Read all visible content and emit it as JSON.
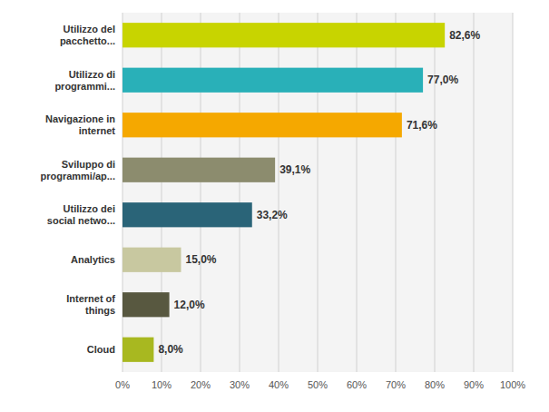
{
  "chart_data": {
    "type": "bar",
    "orientation": "horizontal",
    "categories": [
      "Utilizzo del\npacchetto...",
      "Utilizzo di\nprogrammi...",
      "Navigazione in\ninternet",
      "Sviluppo di\nprogrammi/ap...",
      "Utilizzo dei\nsocial netwo...",
      "Analytics",
      "Internet of\nthings",
      "Cloud"
    ],
    "values": [
      82.6,
      77.0,
      71.6,
      39.1,
      33.2,
      15.0,
      12.0,
      8.0
    ],
    "value_labels": [
      "82,6%",
      "77,0%",
      "71,6%",
      "39,1%",
      "33,2%",
      "15,0%",
      "12,0%",
      "8,0%"
    ],
    "colors": [
      "#c8d400",
      "#29b0b8",
      "#f5a800",
      "#8c8c6e",
      "#2a6478",
      "#c8c8a0",
      "#585840",
      "#a8b820"
    ],
    "xlim": [
      0,
      100
    ],
    "xticks": [
      {
        "value": 0,
        "label": "0%"
      },
      {
        "value": 10,
        "label": "10%"
      },
      {
        "value": 20,
        "label": "20%"
      },
      {
        "value": 30,
        "label": "30%"
      },
      {
        "value": 40,
        "label": "40%"
      },
      {
        "value": 50,
        "label": "50%"
      },
      {
        "value": 60,
        "label": "60%"
      },
      {
        "value": 70,
        "label": "70%"
      },
      {
        "value": 80,
        "label": "80%"
      },
      {
        "value": 90,
        "label": "90%"
      },
      {
        "value": 100,
        "label": "100%"
      }
    ],
    "grid": true,
    "data_labels": true
  }
}
